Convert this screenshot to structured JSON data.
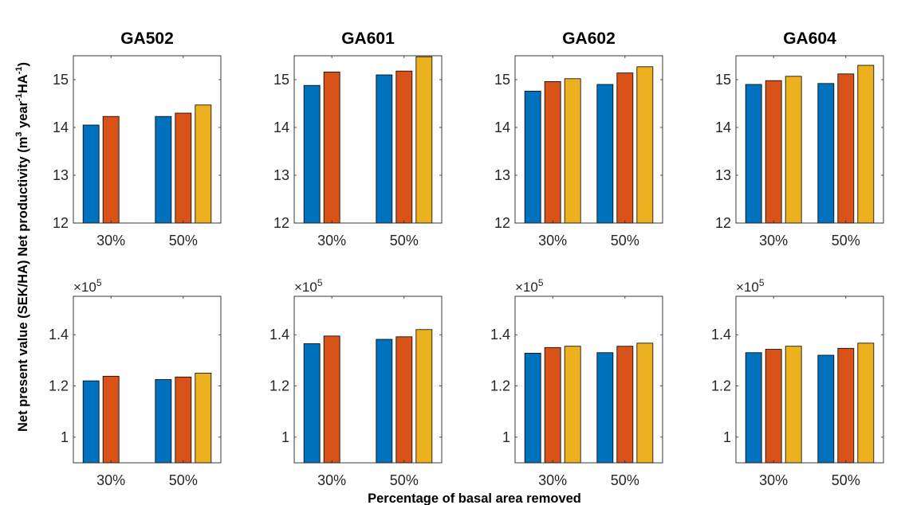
{
  "figure": {
    "xlabel": "Percentage of basal area removed",
    "ylabel_top_prefix": "Net present value (SEK/HA) Net productivity (m",
    "ylabel_sup1": "3",
    "ylabel_mid": " year",
    "ylabel_sup2": "-1",
    "ylabel_mid2": "HA",
    "ylabel_sup3": "-1",
    "ylabel_suffix": ")",
    "exponent_prefix": "×10",
    "exponent_power": "5"
  },
  "colors": {
    "series1": "#0072BD",
    "series2": "#D95319",
    "series3": "#EDB120"
  },
  "chart_data": [
    {
      "type": "bar",
      "title": "GA502",
      "row": "productivity",
      "categories": [
        "30%",
        "50%"
      ],
      "series": [
        {
          "values": [
            14.05,
            14.23
          ]
        },
        {
          "values": [
            14.23,
            14.3
          ]
        },
        {
          "values": [
            null,
            14.47
          ]
        }
      ],
      "ylim": [
        12,
        15.5
      ],
      "yticks": [
        12,
        13,
        14,
        15
      ],
      "ytick_labels": [
        "12",
        "13",
        "14",
        "15"
      ]
    },
    {
      "type": "bar",
      "title": "GA601",
      "row": "productivity",
      "categories": [
        "30%",
        "50%"
      ],
      "series": [
        {
          "values": [
            14.88,
            15.1
          ]
        },
        {
          "values": [
            15.16,
            15.18
          ]
        },
        {
          "values": [
            null,
            15.48
          ]
        }
      ],
      "ylim": [
        12,
        15.5
      ],
      "yticks": [
        12,
        13,
        14,
        15
      ],
      "ytick_labels": [
        "12",
        "13",
        "14",
        "15"
      ]
    },
    {
      "type": "bar",
      "title": "GA602",
      "row": "productivity",
      "categories": [
        "30%",
        "50%"
      ],
      "series": [
        {
          "values": [
            14.76,
            14.9
          ]
        },
        {
          "values": [
            14.96,
            15.14
          ]
        },
        {
          "values": [
            15.02,
            15.27
          ]
        }
      ],
      "ylim": [
        12,
        15.5
      ],
      "yticks": [
        12,
        13,
        14,
        15
      ],
      "ytick_labels": [
        "12",
        "13",
        "14",
        "15"
      ]
    },
    {
      "type": "bar",
      "title": "GA604",
      "row": "productivity",
      "categories": [
        "30%",
        "50%"
      ],
      "series": [
        {
          "values": [
            14.9,
            14.92
          ]
        },
        {
          "values": [
            14.98,
            15.12
          ]
        },
        {
          "values": [
            15.07,
            15.3
          ]
        }
      ],
      "ylim": [
        12,
        15.5
      ],
      "yticks": [
        12,
        13,
        14,
        15
      ],
      "ytick_labels": [
        "12",
        "13",
        "14",
        "15"
      ]
    },
    {
      "type": "bar",
      "title": "",
      "row": "npv",
      "categories": [
        "30%",
        "50%"
      ],
      "series": [
        {
          "values": [
            1.22,
            1.225
          ]
        },
        {
          "values": [
            1.238,
            1.235
          ]
        },
        {
          "values": [
            null,
            1.25
          ]
        }
      ],
      "ylim": [
        0.9,
        1.55
      ],
      "yticks": [
        1.0,
        1.2,
        1.4
      ],
      "ytick_labels": [
        "1",
        "1.2",
        "1.4"
      ]
    },
    {
      "type": "bar",
      "title": "",
      "row": "npv",
      "categories": [
        "30%",
        "50%"
      ],
      "series": [
        {
          "values": [
            1.365,
            1.382
          ]
        },
        {
          "values": [
            1.395,
            1.392
          ]
        },
        {
          "values": [
            null,
            1.42
          ]
        }
      ],
      "ylim": [
        0.9,
        1.55
      ],
      "yticks": [
        1.0,
        1.2,
        1.4
      ],
      "ytick_labels": [
        "1",
        "1.2",
        "1.4"
      ]
    },
    {
      "type": "bar",
      "title": "",
      "row": "npv",
      "categories": [
        "30%",
        "50%"
      ],
      "series": [
        {
          "values": [
            1.328,
            1.33
          ]
        },
        {
          "values": [
            1.35,
            1.355
          ]
        },
        {
          "values": [
            1.355,
            1.367
          ]
        }
      ],
      "ylim": [
        0.9,
        1.55
      ],
      "yticks": [
        1.0,
        1.2,
        1.4
      ],
      "ytick_labels": [
        "1",
        "1.2",
        "1.4"
      ]
    },
    {
      "type": "bar",
      "title": "",
      "row": "npv",
      "categories": [
        "30%",
        "50%"
      ],
      "series": [
        {
          "values": [
            1.33,
            1.32
          ]
        },
        {
          "values": [
            1.343,
            1.347
          ]
        },
        {
          "values": [
            1.355,
            1.367
          ]
        }
      ],
      "ylim": [
        0.9,
        1.55
      ],
      "yticks": [
        1.0,
        1.2,
        1.4
      ],
      "ytick_labels": [
        "1",
        "1.2",
        "1.4"
      ]
    }
  ]
}
